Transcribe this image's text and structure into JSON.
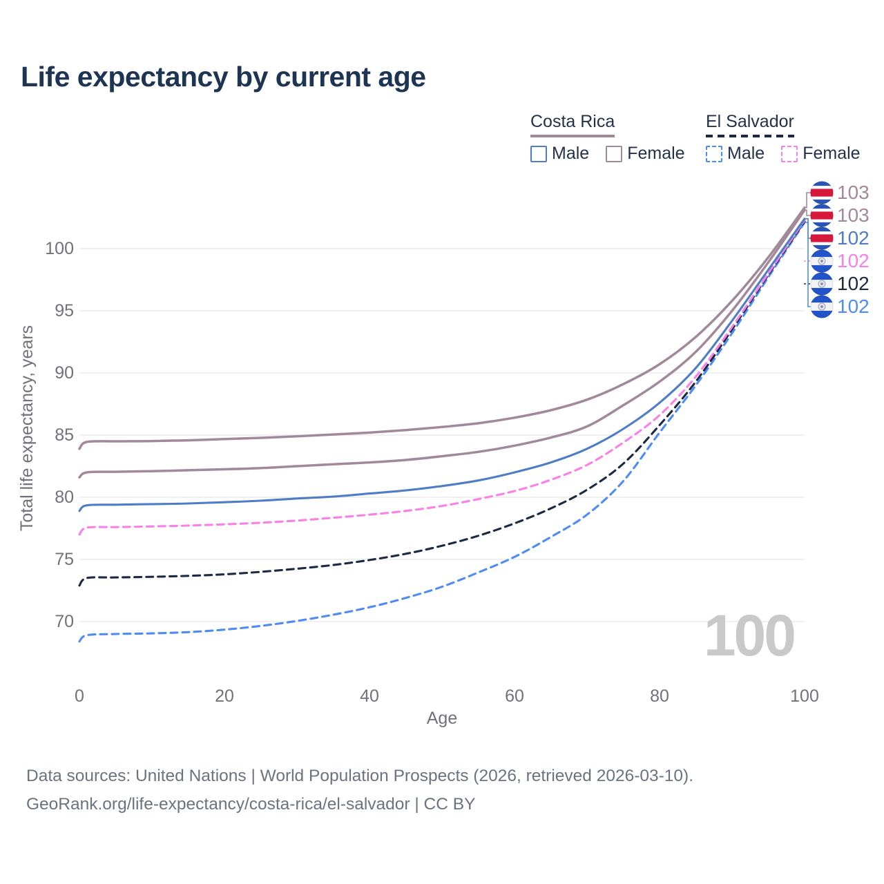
{
  "title": "Life expectancy by current age",
  "legend": {
    "groups": [
      {
        "label": "Costa Rica",
        "line_style": "solid",
        "underline_color": "#a18999",
        "items": [
          {
            "label": "Male",
            "color": "#4e7dc6",
            "dashed": false
          },
          {
            "label": "Female",
            "color": "#a18999",
            "dashed": false
          }
        ]
      },
      {
        "label": "El Salvador",
        "line_style": "dashed",
        "underline_color": "#1b2942",
        "items": [
          {
            "label": "Male",
            "color": "#4e8cf2",
            "dashed": true
          },
          {
            "label": "Female",
            "color": "#f980e6",
            "dashed": true
          }
        ]
      }
    ]
  },
  "watermark": "100",
  "chart_data": {
    "type": "line",
    "title": "Life expectancy by current age",
    "xlabel": "Age",
    "ylabel": "Total life expectancy, years",
    "xlim": [
      0,
      100
    ],
    "x_ticks": [
      0,
      20,
      40,
      60,
      80,
      100
    ],
    "y_ticks": [
      70,
      75,
      80,
      85,
      90,
      95,
      100
    ],
    "grid": "horizontal",
    "x": [
      0,
      1,
      5,
      10,
      15,
      20,
      25,
      30,
      35,
      40,
      45,
      50,
      55,
      60,
      65,
      70,
      75,
      80,
      85,
      90,
      95,
      100
    ],
    "series": [
      {
        "name": "Costa Rica Female",
        "country": "Costa Rica",
        "flag": "costa-rica",
        "color": "#a18999",
        "dashed": false,
        "end_label": "103",
        "values": [
          83.9,
          84.45,
          84.5,
          84.52,
          84.58,
          84.68,
          84.78,
          84.9,
          85.05,
          85.2,
          85.4,
          85.65,
          85.95,
          86.4,
          87.0,
          87.85,
          89.1,
          90.7,
          92.9,
          95.8,
          99.3,
          103.3
        ]
      },
      {
        "name": "Costa Rica",
        "country": "Costa Rica",
        "flag": "costa-rica",
        "color": "#a18999",
        "dashed": false,
        "end_label": "103",
        "values": [
          81.6,
          82.0,
          82.05,
          82.1,
          82.17,
          82.25,
          82.35,
          82.5,
          82.65,
          82.8,
          83.0,
          83.3,
          83.65,
          84.15,
          84.8,
          85.7,
          87.4,
          89.3,
          91.7,
          95.0,
          98.9,
          103.1
        ]
      },
      {
        "name": "Costa Rica Male",
        "country": "Costa Rica",
        "flag": "costa-rica",
        "color": "#4e7dc6",
        "dashed": false,
        "end_label": "102",
        "values": [
          78.9,
          79.35,
          79.4,
          79.45,
          79.5,
          79.6,
          79.72,
          79.9,
          80.05,
          80.3,
          80.55,
          80.9,
          81.35,
          82.0,
          82.8,
          83.9,
          85.5,
          87.6,
          90.4,
          94.2,
          98.3,
          102.4
        ]
      },
      {
        "name": "El Salvador Female",
        "country": "El Salvador",
        "flag": "el-salvador",
        "color": "#f980e6",
        "dashed": true,
        "end_label": "102",
        "values": [
          77.0,
          77.55,
          77.6,
          77.65,
          77.72,
          77.82,
          77.95,
          78.12,
          78.35,
          78.6,
          78.9,
          79.3,
          79.85,
          80.5,
          81.4,
          82.6,
          84.4,
          86.6,
          89.7,
          93.7,
          98.0,
          102.3
        ]
      },
      {
        "name": "El Salvador",
        "country": "El Salvador",
        "flag": "el-salvador",
        "color": "#1b2942",
        "dashed": true,
        "end_label": "102",
        "values": [
          72.9,
          73.5,
          73.55,
          73.6,
          73.68,
          73.8,
          74.0,
          74.25,
          74.55,
          74.95,
          75.45,
          76.1,
          76.9,
          77.9,
          79.1,
          80.6,
          82.7,
          85.8,
          89.3,
          93.5,
          97.9,
          102.2
        ]
      },
      {
        "name": "El Salvador Male",
        "country": "El Salvador",
        "flag": "el-salvador",
        "color": "#4e8cf2",
        "dashed": true,
        "end_label": "102",
        "values": [
          68.4,
          68.9,
          69.0,
          69.05,
          69.15,
          69.35,
          69.65,
          70.05,
          70.55,
          71.15,
          71.9,
          72.8,
          73.95,
          75.2,
          76.8,
          78.6,
          81.3,
          85.2,
          89.0,
          93.2,
          97.7,
          102.1
        ]
      }
    ],
    "colors": {
      "costa_rica": "#a18999",
      "el_salvador": "#1b2942",
      "costa_rica_male": "#4e7dc6",
      "el_salvador_male": "#4e8cf2",
      "el_salvador_female": "#f980e6",
      "grid": "#ebebeb",
      "axis_text": "#71717a",
      "watermark": "#c9c8ca",
      "cr_flag_blue": "#2a55b8",
      "cr_flag_red": "#d6193b",
      "es_flag_blue": "#2353c9"
    }
  },
  "footer": {
    "line1": "Data sources: United Nations | World Population Prospects (2026, retrieved 2026-03-10).",
    "line2": "GeoRank.org/life-expectancy/costa-rica/el-salvador | CC BY"
  }
}
